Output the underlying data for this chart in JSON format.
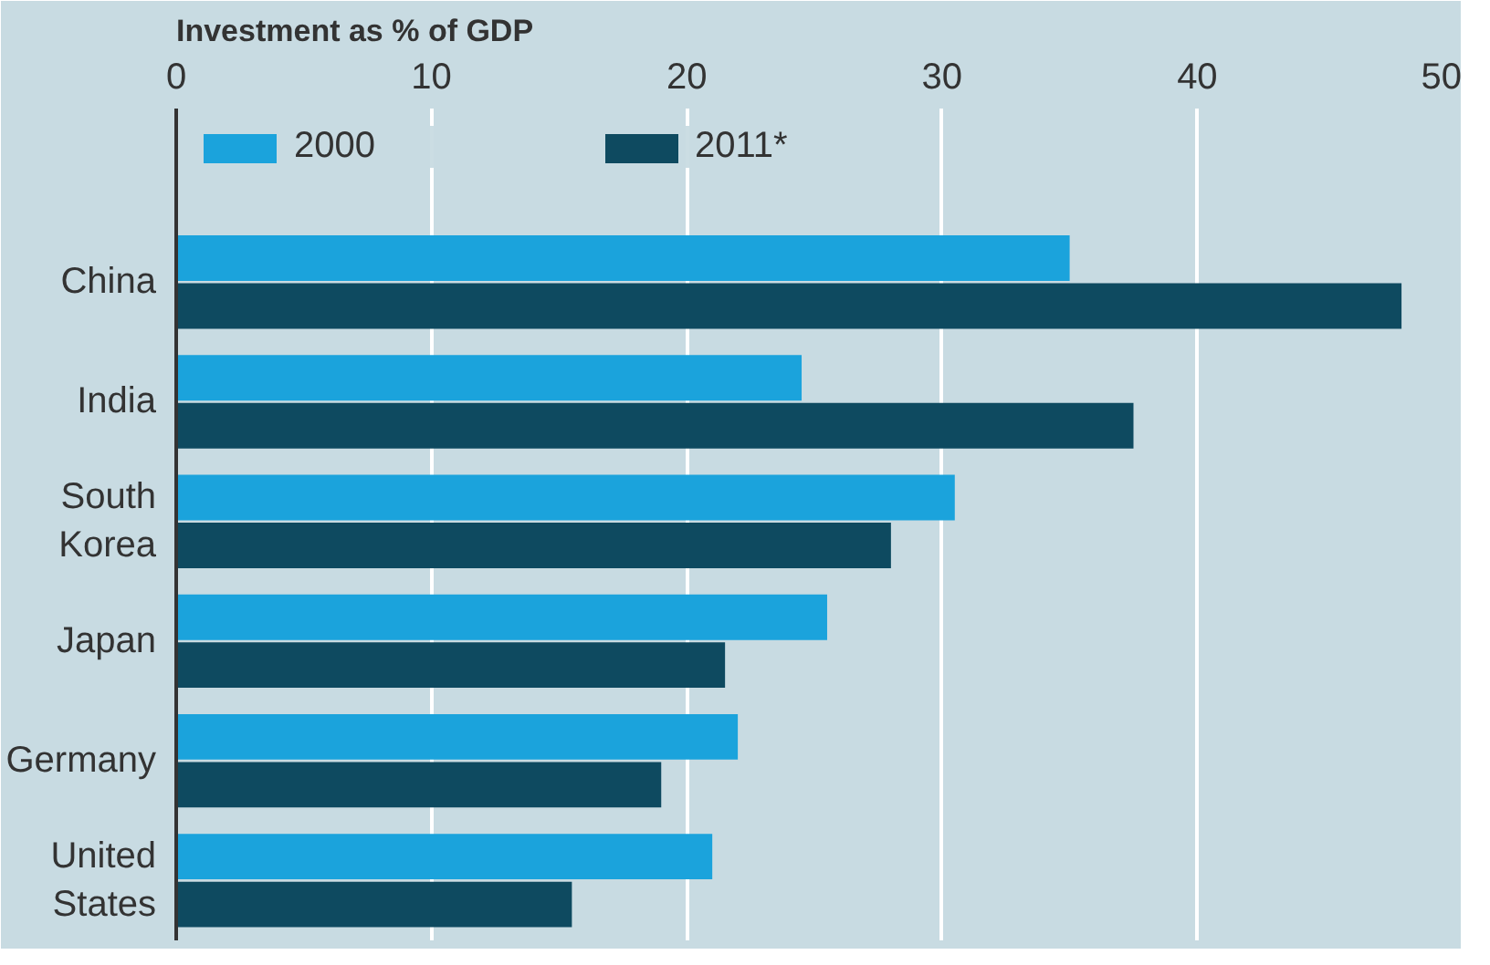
{
  "chart_data": {
    "type": "bar",
    "orientation": "horizontal",
    "title": "Investment as % of GDP",
    "categories": [
      "China",
      "India",
      "South\nKorea",
      "Japan",
      "Germany",
      "United\nStates"
    ],
    "series": [
      {
        "name": "2000",
        "color": "#1ba3dc",
        "values": [
          35,
          24.5,
          30.5,
          25.5,
          22,
          21
        ]
      },
      {
        "name": "2011*",
        "color": "#0e4a60",
        "values": [
          48,
          37.5,
          28,
          21.5,
          19,
          15.5
        ]
      }
    ],
    "xlim": [
      0,
      50
    ],
    "xticks": [
      0,
      10,
      20,
      30,
      40,
      50
    ],
    "grid": "x",
    "legend": "top left"
  }
}
